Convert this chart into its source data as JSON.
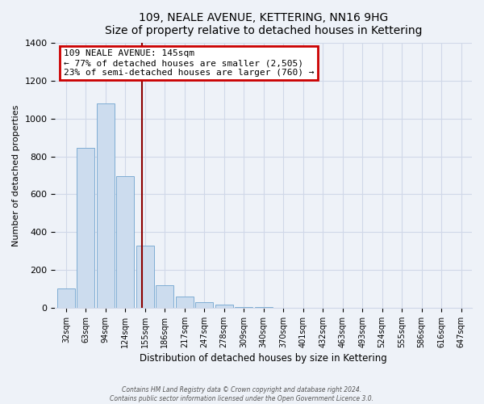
{
  "title": "109, NEALE AVENUE, KETTERING, NN16 9HG",
  "subtitle": "Size of property relative to detached houses in Kettering",
  "xlabel": "Distribution of detached houses by size in Kettering",
  "ylabel": "Number of detached properties",
  "bar_labels": [
    "32sqm",
    "63sqm",
    "94sqm",
    "124sqm",
    "155sqm",
    "186sqm",
    "217sqm",
    "247sqm",
    "278sqm",
    "309sqm",
    "340sqm",
    "370sqm",
    "401sqm",
    "432sqm",
    "463sqm",
    "493sqm",
    "524sqm",
    "555sqm",
    "586sqm",
    "616sqm",
    "647sqm"
  ],
  "bar_values": [
    100,
    845,
    1080,
    695,
    330,
    120,
    60,
    30,
    15,
    5,
    2,
    0,
    0,
    0,
    0,
    0,
    0,
    0,
    0,
    0,
    0
  ],
  "bar_color": "#ccdcee",
  "bar_edge_color": "#7fadd4",
  "vline_color": "#8b0000",
  "annotation_title": "109 NEALE AVENUE: 145sqm",
  "annotation_line1": "← 77% of detached houses are smaller (2,505)",
  "annotation_line2": "23% of semi-detached houses are larger (760) →",
  "annotation_box_color": "#ffffff",
  "annotation_box_edge": "#cc0000",
  "ylim": [
    0,
    1400
  ],
  "yticks": [
    0,
    200,
    400,
    600,
    800,
    1000,
    1200,
    1400
  ],
  "footer1": "Contains HM Land Registry data © Crown copyright and database right 2024.",
  "footer2": "Contains public sector information licensed under the Open Government Licence 3.0.",
  "bg_color": "#eef2f8",
  "grid_color": "#d0d8e8",
  "title_fontsize": 10,
  "subtitle_fontsize": 9
}
